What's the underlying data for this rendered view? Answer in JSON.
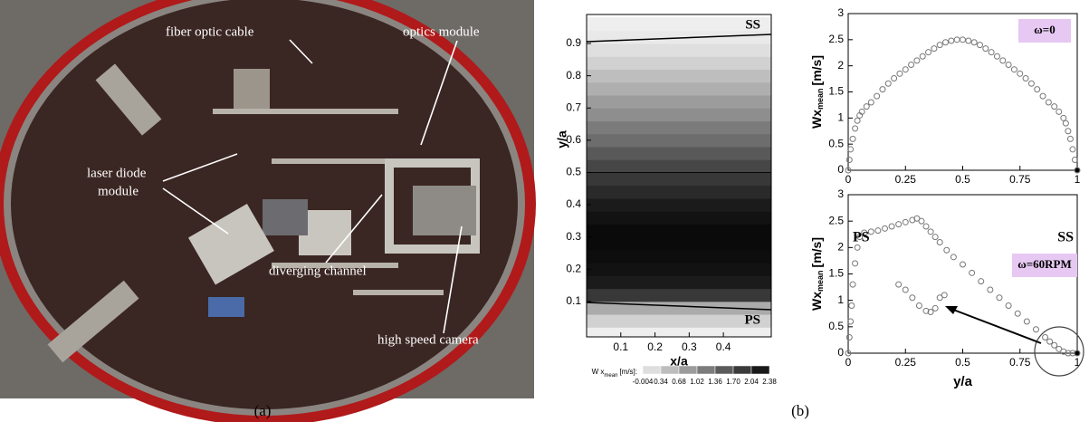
{
  "photo": {
    "labels": [
      "fiber optic cable",
      "optics module",
      "laser diode",
      "module",
      "diverging channel",
      "high speed camera"
    ],
    "caption": "(a)"
  },
  "caption_b": "(b)",
  "chart_data": [
    {
      "type": "contour",
      "xlabel": "x/a",
      "ylabel": "y/a",
      "xlim": [
        0,
        0.54
      ],
      "ylim": [
        -0.01,
        0.99
      ],
      "xticks": [
        0.1,
        0.2,
        0.3,
        0.4
      ],
      "yticks": [
        0.1,
        0.2,
        0.3,
        0.4,
        0.5,
        0.6,
        0.7,
        0.8,
        0.9
      ],
      "annotations": [
        "SS",
        "PS"
      ],
      "y": [
        0.0,
        0.04,
        0.08,
        0.12,
        0.16,
        0.2,
        0.24,
        0.28,
        0.32,
        0.36,
        0.4,
        0.44,
        0.48,
        0.52,
        0.56,
        0.6,
        0.64,
        0.68,
        0.72,
        0.76,
        0.8,
        0.84,
        0.88,
        0.92,
        0.96
      ],
      "values": [
        0.0,
        0.3,
        0.7,
        1.9,
        2.2,
        2.3,
        2.35,
        2.38,
        2.38,
        2.3,
        2.2,
        2.05,
        1.9,
        1.75,
        1.55,
        1.35,
        1.2,
        1.0,
        0.85,
        0.65,
        0.5,
        0.3,
        0.15,
        0.05,
        0.0
      ],
      "levels": [
        -0.004,
        0.34,
        0.68,
        1.02,
        1.36,
        {
          "value": 1.7,
          "label": "1.70"
        },
        2.04,
        2.38
      ],
      "colorbar_label": "W x",
      "colorbar_label_sub": "mean",
      "colorbar_label_unit": "[m/s]:"
    },
    {
      "type": "scatter",
      "xlabel": null,
      "ylabel": "Wx",
      "ylabel_sub": "mean",
      "ylabel_unit": "[m/s]",
      "xlim": [
        0,
        1
      ],
      "ylim": [
        0,
        3
      ],
      "xticks": [
        0,
        0.25,
        0.5,
        0.75,
        1
      ],
      "yticks": [
        0,
        0.5,
        1,
        1.5,
        2,
        2.5,
        3
      ],
      "annotations": [
        "ω=0"
      ],
      "series": [
        {
          "color": "#777777",
          "x": [
            0,
            0.005,
            0.01,
            0.02,
            0.03,
            0.04,
            0.05,
            0.06,
            0.08,
            0.1,
            0.125,
            0.15,
            0.175,
            0.2,
            0.225,
            0.25,
            0.275,
            0.3,
            0.325,
            0.35,
            0.375,
            0.4,
            0.425,
            0.45,
            0.475,
            0.5,
            0.525,
            0.55,
            0.575,
            0.6,
            0.625,
            0.65,
            0.675,
            0.7,
            0.725,
            0.75,
            0.775,
            0.8,
            0.825,
            0.85,
            0.875,
            0.9,
            0.92,
            0.94,
            0.95,
            0.96,
            0.97,
            0.98,
            0.99,
            1.0
          ],
          "values": [
            0,
            0.2,
            0.4,
            0.6,
            0.8,
            0.95,
            1.05,
            1.12,
            1.22,
            1.3,
            1.42,
            1.55,
            1.66,
            1.76,
            1.85,
            1.93,
            2.02,
            2.1,
            2.18,
            2.26,
            2.33,
            2.4,
            2.45,
            2.48,
            2.5,
            2.5,
            2.48,
            2.45,
            2.4,
            2.33,
            2.26,
            2.18,
            2.1,
            2.02,
            1.93,
            1.85,
            1.76,
            1.66,
            1.55,
            1.42,
            1.3,
            1.22,
            1.12,
            1.0,
            0.9,
            0.75,
            0.6,
            0.4,
            0.2,
            0
          ]
        }
      ]
    },
    {
      "type": "scatter",
      "xlabel": "y/a",
      "ylabel": "Wx",
      "ylabel_sub": "mean",
      "ylabel_unit": "[m/s]",
      "xlim": [
        0,
        1
      ],
      "ylim": [
        0,
        3
      ],
      "xticks": [
        0,
        0.25,
        0.5,
        0.75,
        1
      ],
      "yticks": [
        0,
        0.5,
        1,
        1.5,
        2,
        2.5,
        3
      ],
      "annotations": [
        "PS",
        "SS",
        "ω=60RPM"
      ],
      "series": [
        {
          "color": "#777777",
          "x": [
            0,
            0.005,
            0.01,
            0.015,
            0.02,
            0.03,
            0.04,
            0.05,
            0.07,
            0.1,
            0.13,
            0.16,
            0.19,
            0.22,
            0.25,
            0.28,
            0.3,
            0.32,
            0.34,
            0.36,
            0.38,
            0.4,
            0.43,
            0.46,
            0.5,
            0.54,
            0.58,
            0.62,
            0.66,
            0.7,
            0.74,
            0.78,
            0.82,
            0.86,
            0.88,
            0.9,
            0.92,
            0.94,
            0.96,
            0.98,
            1.0
          ],
          "values": [
            0,
            0.3,
            0.6,
            0.9,
            1.3,
            1.7,
            2.0,
            2.2,
            2.28,
            2.3,
            2.32,
            2.36,
            2.4,
            2.44,
            2.48,
            2.52,
            2.55,
            2.5,
            2.4,
            2.3,
            2.2,
            2.1,
            1.95,
            1.82,
            1.68,
            1.52,
            1.36,
            1.2,
            1.05,
            0.9,
            0.75,
            0.6,
            0.45,
            0.3,
            0.22,
            0.15,
            0.08,
            0.03,
            0,
            0,
            0
          ]
        },
        {
          "color": "#777777",
          "x": [
            0.22,
            0.25,
            0.28,
            0.31,
            0.34,
            0.36,
            0.38,
            0.4,
            0.42
          ],
          "values": [
            1.3,
            1.2,
            1.05,
            0.9,
            0.8,
            0.78,
            0.85,
            1.05,
            1.1
          ]
        }
      ]
    }
  ]
}
